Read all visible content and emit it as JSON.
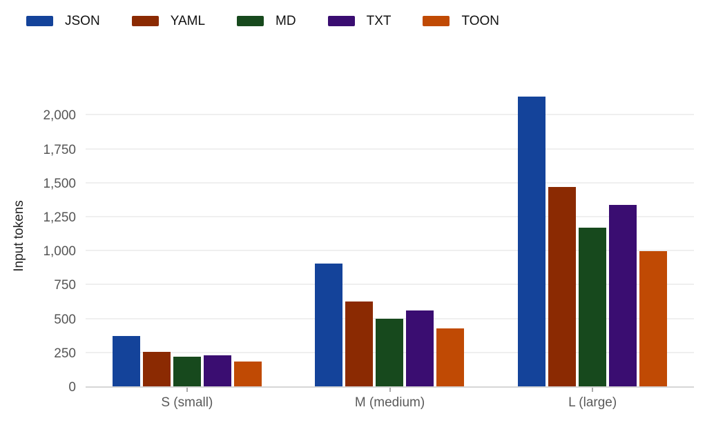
{
  "chart_data": {
    "type": "bar",
    "title": "",
    "ylabel": "Input tokens",
    "xlabel": "",
    "categories": [
      "S (small)",
      "M (medium)",
      "L (large)"
    ],
    "series": [
      {
        "name": "JSON",
        "color": "#14439a",
        "values": [
          370,
          903,
          2135
        ]
      },
      {
        "name": "YAML",
        "color": "#8b2a02",
        "values": [
          253,
          625,
          1468
        ]
      },
      {
        "name": "MD",
        "color": "#17491d",
        "values": [
          220,
          500,
          1170
        ]
      },
      {
        "name": "TXT",
        "color": "#3a0d71",
        "values": [
          228,
          558,
          1338
        ]
      },
      {
        "name": "TOON",
        "color": "#c04a04",
        "values": [
          183,
          425,
          998
        ]
      }
    ],
    "ylim": [
      0,
      2200
    ],
    "yticks": [
      0,
      250,
      500,
      750,
      1000,
      1250,
      1500,
      1750,
      2000
    ],
    "ytick_labels": [
      "0",
      "250",
      "500",
      "750",
      "1,000",
      "1,250",
      "1,500",
      "1,750",
      "2,000"
    ],
    "grid": true,
    "gridlines_horizontal_only": true,
    "legend_position": "top-left",
    "background_color": "#ffffff",
    "gridline_color": "#efefef",
    "axis_line_color": "#d6d6d6",
    "tick_label_color": "#555555",
    "legend_text_color": "#111111"
  }
}
